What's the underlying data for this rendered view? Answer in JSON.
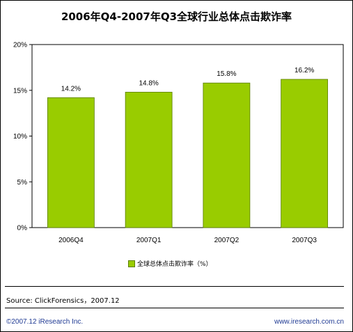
{
  "colors": {
    "bar": "#99cc00",
    "bar_stroke": "#5a7d00",
    "plot_background": "#ffffff",
    "footer_text": "#1f3a93"
  },
  "chart_data": {
    "type": "bar",
    "title": "2006年Q4-2007年Q3全球行业总体点击欺诈率",
    "categories": [
      "2006Q4",
      "2007Q1",
      "2007Q2",
      "2007Q3"
    ],
    "series": [
      {
        "name": "全球总体点击欺诈率（%）",
        "values": [
          14.2,
          14.8,
          15.8,
          16.2
        ],
        "labels": [
          "14.2%",
          "14.8%",
          "15.8%",
          "16.2%"
        ]
      }
    ],
    "yticks": [
      0,
      5,
      10,
      15,
      20
    ],
    "ytick_labels": [
      "0%",
      "5%",
      "10%",
      "15%",
      "20%"
    ],
    "ylim": [
      0,
      20
    ],
    "grid": false,
    "legend_position": "bottom"
  },
  "footer": {
    "source": "Source: ClickForensics，2007.12",
    "copyright": "©2007.12 iResearch Inc.",
    "website": "www.iresearch.com.cn"
  }
}
